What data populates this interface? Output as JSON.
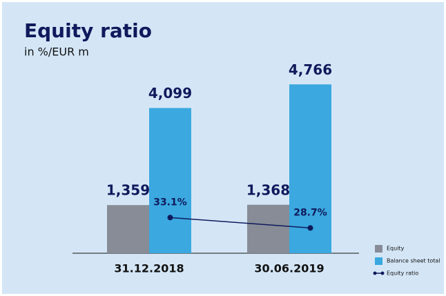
{
  "chart_data": {
    "type": "bar",
    "title": "Equity ratio",
    "subtitle": "in %/EUR m",
    "categories": [
      "31.12.2018",
      "30.06.2019"
    ],
    "series": [
      {
        "name": "Equity",
        "type": "bar",
        "color": "#878c96",
        "values": [
          1359,
          1368
        ],
        "value_labels": [
          "1,359",
          "1,368"
        ]
      },
      {
        "name": "Balance sheet total",
        "type": "bar",
        "color": "#3ba8e0",
        "values": [
          4099,
          4766
        ],
        "value_labels": [
          "4,099",
          "4,766"
        ]
      },
      {
        "name": "Equity ratio",
        "type": "line",
        "axis": "y2",
        "color": "#0f1a5c",
        "values": [
          33.1,
          28.7
        ],
        "value_labels": [
          "33.1%",
          "28.7%"
        ]
      }
    ],
    "ylim": [
      0,
      5200
    ],
    "y2lim": [
      18,
      96
    ],
    "legend": "lower right"
  }
}
